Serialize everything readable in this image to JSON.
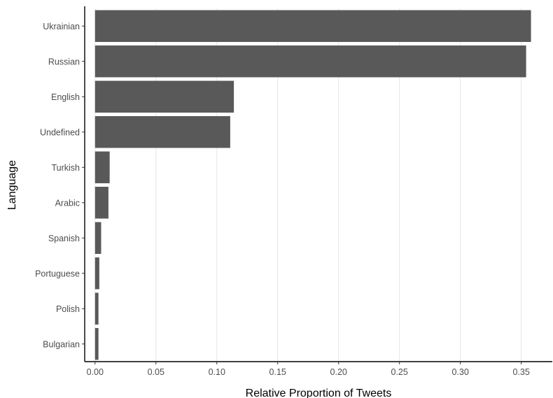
{
  "chart_data": {
    "type": "bar",
    "orientation": "horizontal",
    "title": "",
    "xlabel": "Relative Proportion of Tweets",
    "ylabel": "Language",
    "categories": [
      "Ukrainian",
      "Russian",
      "English",
      "Undefined",
      "Turkish",
      "Arabic",
      "Spanish",
      "Portuguese",
      "Polish",
      "Bulgarian"
    ],
    "values": [
      0.358,
      0.354,
      0.114,
      0.111,
      0.012,
      0.011,
      0.005,
      0.0035,
      0.0028,
      0.0028
    ],
    "xlim": [
      -0.0085,
      0.3755
    ],
    "x_ticks": [
      0.0,
      0.05,
      0.1,
      0.15,
      0.2,
      0.25,
      0.3,
      0.35
    ],
    "x_tick_labels": [
      "0.00",
      "0.05",
      "0.10",
      "0.15",
      "0.20",
      "0.25",
      "0.30",
      "0.35"
    ],
    "grid": "vertical major",
    "legend": "none",
    "colors": {
      "bar": "#595959",
      "grid": "#e5e5e5",
      "axis": "#000000",
      "tick_text": "#4d4d4d",
      "title_text": "#000000",
      "background": "#ffffff"
    }
  }
}
